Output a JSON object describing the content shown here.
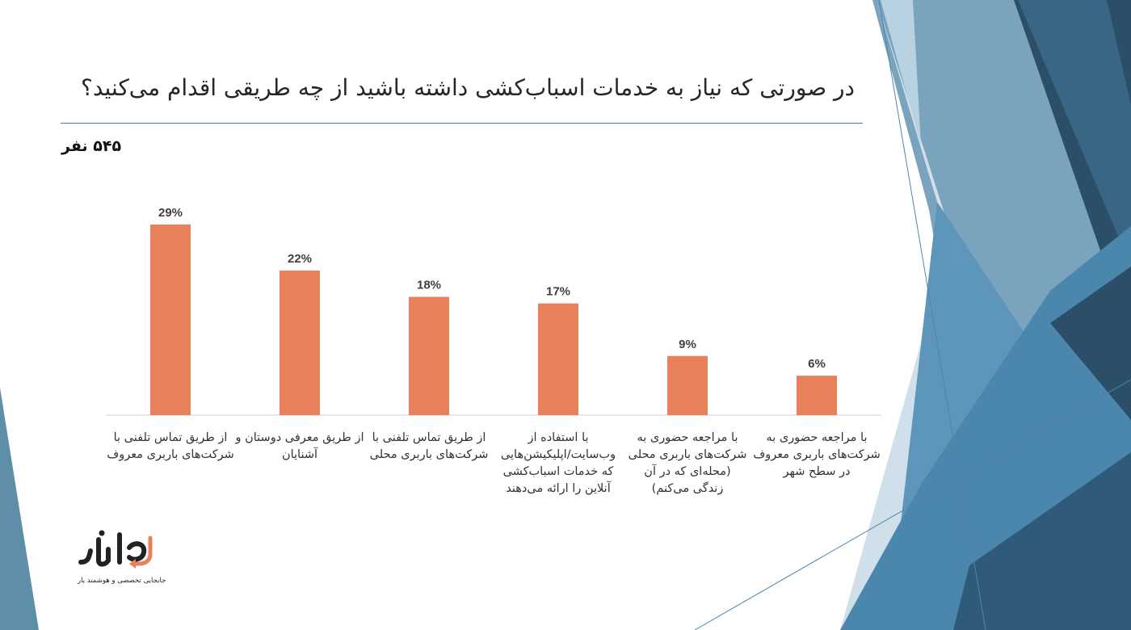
{
  "slide": {
    "title": "در صورتی که نیاز به خدمات اسباب‌کشی داشته باشید از چه طریقی اقدام می‌کنید؟",
    "sample_size": "۵۴۵ نفر"
  },
  "logo": {
    "tagline": "جابجایی تخصصی و هوشمند بار"
  },
  "colors": {
    "bar": "#E8805C",
    "rule": "#3f7f9c",
    "axis": "#d0d0d0",
    "deco_dark": "#2f5571",
    "deco_mid": "#4f86a8",
    "deco_light": "#a9c9dc"
  },
  "chart_data": {
    "type": "bar",
    "categories": [
      "از طریق تماس تلفنی با شرکت‌های باربری معروف",
      "از طریق معرفی دوستان و آشنایان",
      "از طریق تماس تلفنی با شرکت‌های باربری محلی",
      "با استفاده از وب‌سایت/اپلیکیشن‌هایی که خدمات اسباب‌کشی آنلاین را ارائه می‌دهند",
      "با مراجعه حضوری به شرکت‌های باربری محلی (محله‌ای که در آن زندگی می‌کنم)",
      "با مراجعه حضوری به شرکت‌های باربری معروف در سطح شهر"
    ],
    "category_lines": [
      [
        "از طریق تماس تلفنی با",
        "شرکت‌های باربری معروف"
      ],
      [
        "از طریق معرفی دوستان و",
        "آشنایان"
      ],
      [
        "از طریق تماس تلفنی با",
        "شرکت‌های باربری محلی"
      ],
      [
        "با استفاده از",
        "وب‌سایت/اپلیکیشن‌هایی",
        "که خدمات اسباب‌کشی",
        "آنلاین را ارائه می‌دهند"
      ],
      [
        "با مراجعه حضوری به",
        "شرکت‌های باربری محلی",
        "(محله‌ای که در آن",
        "زندگی می‌کنم)"
      ],
      [
        "با مراجعه حضوری به",
        "شرکت‌های باربری معروف",
        "در سطح شهر"
      ]
    ],
    "values": [
      29,
      22,
      18,
      17,
      9,
      6
    ],
    "value_labels": [
      "29%",
      "22%",
      "18%",
      "17%",
      "9%",
      "6%"
    ],
    "ylim": [
      0,
      30
    ],
    "grid": false,
    "legend": "none"
  }
}
